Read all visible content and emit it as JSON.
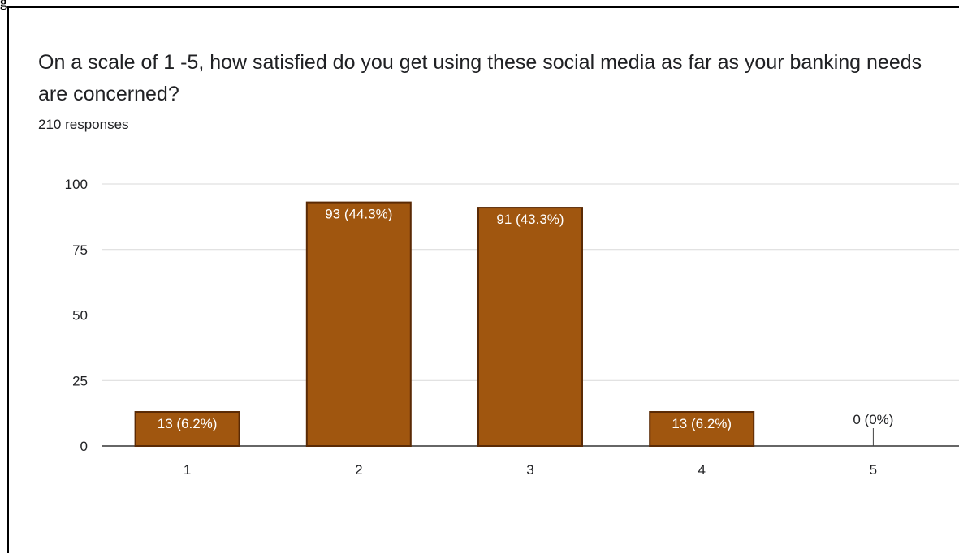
{
  "frame_label": "g",
  "question": "On a scale of 1 -5, how satisfied do you get using these social media as far as your banking needs are concerned?",
  "responses_text": "210 responses",
  "chart_data": {
    "type": "bar",
    "title": "On a scale of 1 -5, how satisfied do you get using these social media as far as your banking needs are concerned?",
    "subtitle": "210 responses",
    "categories": [
      "1",
      "2",
      "3",
      "4",
      "5"
    ],
    "values": [
      13,
      93,
      91,
      13,
      0
    ],
    "data_labels": [
      "13 (6.2%)",
      "93 (44.3%)",
      "91 (43.3%)",
      "13 (6.2%)",
      "0 (0%)"
    ],
    "y_ticks": [
      0,
      25,
      50,
      75,
      100
    ],
    "ylim": [
      0,
      100
    ],
    "grid": true,
    "bar_color": "#a0560f",
    "bar_edge_color": "#5a2a05",
    "grid_color": "#d9d9d9"
  }
}
